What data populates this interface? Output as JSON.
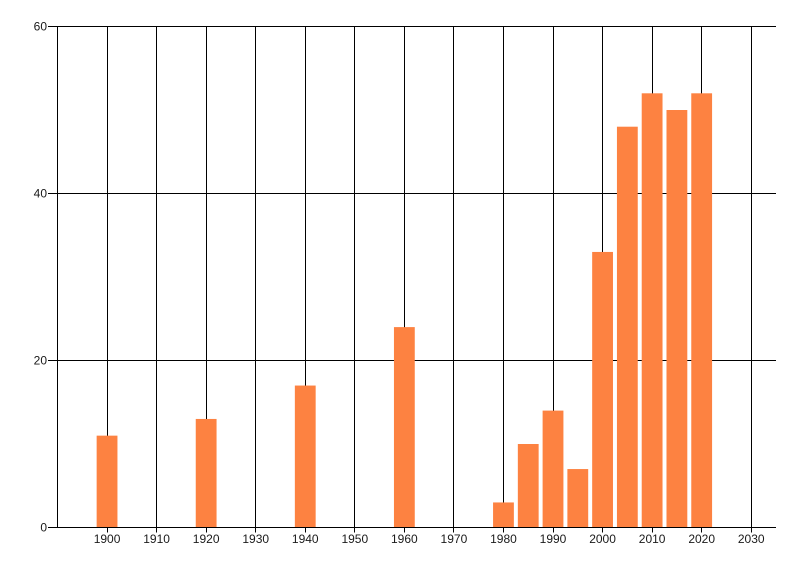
{
  "page": {
    "background_color": "#ffffff"
  },
  "chart_data": {
    "type": "bar",
    "title": "",
    "xlabel": "",
    "ylabel": "",
    "x": [
      1900,
      1920,
      1940,
      1960,
      1980,
      1985,
      1990,
      1995,
      2000,
      2005,
      2010,
      2015,
      2020
    ],
    "values": [
      11,
      13,
      17,
      24,
      3,
      10,
      14,
      7,
      33,
      48,
      52,
      50,
      52
    ],
    "xlim": [
      1890,
      2035
    ],
    "ylim": [
      0,
      60
    ],
    "x_ticks": [
      1900,
      1910,
      1920,
      1930,
      1940,
      1950,
      1960,
      1970,
      1980,
      1990,
      2000,
      2010,
      2020,
      2030
    ],
    "x_tick_labels": [
      "1900",
      "1910",
      "1920",
      "1930",
      "1940",
      "1950",
      "1960",
      "1970",
      "1980",
      "1990",
      "2000",
      "2010",
      "2020",
      "2030"
    ],
    "y_ticks": [
      0,
      20,
      40,
      60
    ],
    "y_tick_labels": [
      "0",
      "20",
      "40",
      "60"
    ],
    "x_gridlines": [
      1890,
      1900,
      1910,
      1920,
      1930,
      1940,
      1950,
      1960,
      1970,
      1980,
      1990,
      2000,
      2010,
      2020,
      2030
    ],
    "y_gridlines": [
      0,
      20,
      40,
      60
    ],
    "grid": true,
    "legend_position": "none",
    "bar_color": "#fd8241",
    "grid_color": "#000000",
    "axis_color": "#000000",
    "tick_label_color": "#1a1a1a",
    "bar_width_years": 4.2
  }
}
